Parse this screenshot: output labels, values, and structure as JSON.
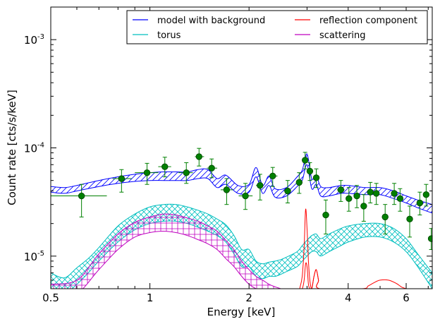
{
  "chart_data": {
    "type": "line",
    "xlabel": "Energy [keV]",
    "ylabel": "Count rate [cts/s/keV]",
    "xscale": "log",
    "yscale": "log",
    "xlim": [
      0.5,
      7.2
    ],
    "ylim": [
      5e-06,
      0.002
    ],
    "grid": false,
    "legend_placement": "top-right",
    "x_ticks": [
      {
        "value": 0.5,
        "label": "0.5"
      },
      {
        "value": 1,
        "label": "1"
      },
      {
        "value": 2,
        "label": "2"
      },
      {
        "value": 4,
        "label": "4"
      },
      {
        "value": 6,
        "label": "6"
      }
    ],
    "y_ticks": [
      {
        "value": 1e-05,
        "base": "10",
        "exp": "-5"
      },
      {
        "value": 0.0001,
        "base": "10",
        "exp": "-4"
      },
      {
        "value": 0.001,
        "base": "10",
        "exp": "-3"
      }
    ],
    "series": [
      {
        "name": "model with background",
        "color": "#0000ff",
        "hatch": "diagonal",
        "x": [
          0.5,
          0.55,
          0.6,
          0.7,
          0.8,
          0.9,
          1.0,
          1.1,
          1.2,
          1.3,
          1.4,
          1.5,
          1.6,
          1.7,
          1.85,
          2.0,
          2.1,
          2.2,
          2.3,
          2.4,
          2.6,
          2.8,
          2.9,
          3.0,
          3.1,
          3.2,
          3.3,
          3.5,
          3.8,
          4.0,
          4.5,
          5.0,
          5.5,
          6.0,
          6.5,
          7.2
        ],
        "low": [
          3.9e-05,
          3.8e-05,
          4e-05,
          4.4e-05,
          4.7e-05,
          4.9e-05,
          5e-05,
          5e-05,
          5e-05,
          5e-05,
          5.2e-05,
          5.2e-05,
          4.3e-05,
          4.6e-05,
          3.8e-05,
          3.9e-05,
          5.4e-05,
          3.8e-05,
          4.5e-05,
          3.5e-05,
          3.6e-05,
          4.4e-05,
          5e-05,
          7e-05,
          4.2e-05,
          4.6e-05,
          3.6e-05,
          3.6e-05,
          3.8e-05,
          3.8e-05,
          3.7e-05,
          3.7e-05,
          3.4e-05,
          3.1e-05,
          2.8e-05,
          2.5e-05
        ],
        "high": [
          4.4e-05,
          4.3e-05,
          4.5e-05,
          5e-05,
          5.4e-05,
          5.7e-05,
          5.9e-05,
          6e-05,
          6e-05,
          6e-05,
          6.3e-05,
          6.3e-05,
          5.2e-05,
          5.6e-05,
          4.5e-05,
          4.6e-05,
          6.6e-05,
          4.5e-05,
          5.5e-05,
          4.2e-05,
          4.3e-05,
          5.4e-05,
          6.2e-05,
          8.8e-05,
          5.2e-05,
          5.6e-05,
          4.4e-05,
          4.3e-05,
          4.5e-05,
          4.5e-05,
          4.3e-05,
          4.3e-05,
          4e-05,
          3.6e-05,
          3.3e-05,
          3e-05
        ]
      },
      {
        "name": "torus",
        "color": "#00bfbf",
        "hatch": "crosshatch",
        "x": [
          0.5,
          0.55,
          0.6,
          0.65,
          0.7,
          0.8,
          0.9,
          1.0,
          1.1,
          1.2,
          1.3,
          1.4,
          1.5,
          1.6,
          1.7,
          1.8,
          1.9,
          2.0,
          2.1,
          2.2,
          2.3,
          2.4,
          2.5,
          2.6,
          2.8,
          2.9,
          3.0,
          3.1,
          3.2,
          3.3,
          3.5,
          3.8,
          4.0,
          4.5,
          5.0,
          5.5,
          6.0,
          6.5,
          7.2
        ],
        "low": [
          5e-06,
          4.5e-06,
          5.5e-06,
          7e-06,
          9e-06,
          1.35e-05,
          1.75e-05,
          2e-05,
          2.1e-05,
          2.1e-05,
          2e-05,
          1.85e-05,
          1.7e-05,
          1.55e-05,
          1.35e-05,
          1.05e-05,
          8e-06,
          8e-06,
          6.5e-06,
          6.2e-06,
          6.5e-06,
          6.5e-06,
          6.8e-06,
          7.2e-06,
          8e-06,
          9e-06,
          1e-05,
          1.1e-05,
          1.1e-05,
          1e-05,
          1.1e-05,
          1.25e-05,
          1.35e-05,
          1.5e-05,
          1.5e-05,
          1.35e-05,
          1.1e-05,
          8e-06,
          5e-06
        ],
        "high": [
          7e-06,
          6.3e-06,
          7.8e-06,
          9.5e-06,
          1.2e-05,
          1.9e-05,
          2.45e-05,
          2.85e-05,
          3e-05,
          3e-05,
          2.85e-05,
          2.65e-05,
          2.45e-05,
          2.2e-05,
          1.95e-05,
          1.55e-05,
          1.15e-05,
          1.15e-05,
          9e-06,
          8.5e-06,
          8.8e-06,
          9e-06,
          9.3e-06,
          9.8e-06,
          1.1e-05,
          1.25e-05,
          1.4e-05,
          1.55e-05,
          1.6e-05,
          1.45e-05,
          1.6e-05,
          1.8e-05,
          1.9e-05,
          2e-05,
          2e-05,
          1.8e-05,
          1.45e-05,
          1.05e-05,
          7e-06
        ]
      },
      {
        "name": "reflection component",
        "color": "#ff0000",
        "hatch": "none",
        "x": [
          2.85,
          2.9,
          2.94,
          2.97,
          3.0,
          3.03,
          3.06,
          3.1,
          3.15,
          3.2,
          3.25,
          3.28,
          4.4,
          4.6,
          4.8,
          5.0,
          5.3,
          5.6,
          5.8,
          6.0
        ],
        "low": [
          5e-06,
          5e-06,
          6e-06,
          8.5e-06,
          8e-06,
          5.5e-06,
          5e-06,
          5e-06,
          6.5e-06,
          7.5e-06,
          6e-06,
          5e-06,
          5e-06,
          5e-06,
          5e-06,
          5e-06,
          5e-06,
          5e-06,
          5e-06,
          5e-06
        ],
        "high": [
          5e-06,
          6.5e-06,
          1.2e-05,
          2.7e-05,
          1.8e-05,
          9e-06,
          6e-06,
          5e-06,
          6.5e-06,
          7.5e-06,
          6e-06,
          5e-06,
          5e-06,
          5.3e-06,
          5.7e-06,
          6e-06,
          6e-06,
          5.6e-06,
          5.2e-06,
          5e-06
        ]
      },
      {
        "name": "scattering",
        "color": "#bf00bf",
        "hatch": "grid",
        "x": [
          0.5,
          0.6,
          0.7,
          0.8,
          0.9,
          1.0,
          1.1,
          1.2,
          1.3,
          1.4,
          1.5,
          1.6,
          1.7,
          1.8,
          1.9,
          2.0,
          2.1,
          2.2,
          2.3,
          2.4,
          2.5
        ],
        "low": [
          4e-06,
          4.5e-06,
          7.5e-06,
          1.15e-05,
          1.5e-05,
          1.65e-05,
          1.7e-05,
          1.65e-05,
          1.55e-05,
          1.42e-05,
          1.3e-05,
          1.15e-05,
          9.5e-06,
          8e-06,
          6.5e-06,
          5.5e-06,
          5e-06,
          4.8e-06,
          4.8e-06,
          4.8e-06,
          4.8e-06
        ],
        "high": [
          5.5e-06,
          6e-06,
          1.05e-05,
          1.6e-05,
          2.05e-05,
          2.3e-05,
          2.45e-05,
          2.4e-05,
          2.25e-05,
          2.1e-05,
          1.9e-05,
          1.7e-05,
          1.4e-05,
          1.15e-05,
          9e-06,
          7.5e-06,
          6.5e-06,
          6e-06,
          5.5e-06,
          5.2e-06,
          5e-06
        ]
      }
    ],
    "data_points": {
      "color": "#008000",
      "edge_color": "#004d00",
      "points": [
        {
          "x": 0.62,
          "y": 3.6e-05,
          "xlo": 0.5,
          "xhi": 0.74,
          "ylo": 2.3e-05,
          "yhi": 4.6e-05
        },
        {
          "x": 0.82,
          "y": 5.2e-05,
          "xlo": 0.77,
          "xhi": 0.88,
          "ylo": 3.9e-05,
          "yhi": 6.3e-05
        },
        {
          "x": 0.98,
          "y": 5.9e-05,
          "xlo": 0.9,
          "xhi": 1.06,
          "ylo": 4.6e-05,
          "yhi": 7.2e-05
        },
        {
          "x": 1.11,
          "y": 6.7e-05,
          "xlo": 1.06,
          "xhi": 1.16,
          "ylo": 5.4e-05,
          "yhi": 8.2e-05
        },
        {
          "x": 1.29,
          "y": 5.9e-05,
          "xlo": 1.22,
          "xhi": 1.35,
          "ylo": 4.7e-05,
          "yhi": 7.3e-05
        },
        {
          "x": 1.41,
          "y": 8.3e-05,
          "xlo": 1.37,
          "xhi": 1.46,
          "ylo": 6.8e-05,
          "yhi": 9.9e-05
        },
        {
          "x": 1.54,
          "y": 6.5e-05,
          "xlo": 1.49,
          "xhi": 1.6,
          "ylo": 5.3e-05,
          "yhi": 7.9e-05
        },
        {
          "x": 1.71,
          "y": 4.1e-05,
          "xlo": 1.64,
          "xhi": 1.79,
          "ylo": 3e-05,
          "yhi": 5.2e-05
        },
        {
          "x": 1.95,
          "y": 3.6e-05,
          "xlo": 1.86,
          "xhi": 2.05,
          "ylo": 2.7e-05,
          "yhi": 4.7e-05
        },
        {
          "x": 2.16,
          "y": 4.5e-05,
          "xlo": 2.1,
          "xhi": 2.2,
          "ylo": 3.3e-05,
          "yhi": 5.7e-05
        },
        {
          "x": 2.36,
          "y": 5.5e-05,
          "xlo": 2.3,
          "xhi": 2.44,
          "ylo": 4.4e-05,
          "yhi": 6.6e-05
        },
        {
          "x": 2.62,
          "y": 4e-05,
          "xlo": 2.55,
          "xhi": 2.68,
          "ylo": 3.1e-05,
          "yhi": 5e-05
        },
        {
          "x": 2.84,
          "y": 4.8e-05,
          "xlo": 2.78,
          "xhi": 2.88,
          "ylo": 3.8e-05,
          "yhi": 5.9e-05
        },
        {
          "x": 2.96,
          "y": 7.7e-05,
          "xlo": 2.92,
          "xhi": 3.0,
          "ylo": 6.4e-05,
          "yhi": 9.1e-05
        },
        {
          "x": 3.06,
          "y": 6.1e-05,
          "xlo": 3.02,
          "xhi": 3.1,
          "ylo": 5e-05,
          "yhi": 7.3e-05
        },
        {
          "x": 3.2,
          "y": 5.3e-05,
          "xlo": 3.14,
          "xhi": 3.26,
          "ylo": 4.3e-05,
          "yhi": 6.4e-05
        },
        {
          "x": 3.42,
          "y": 2.4e-05,
          "xlo": 3.35,
          "xhi": 3.5,
          "ylo": 1.6e-05,
          "yhi": 3.3e-05
        },
        {
          "x": 3.8,
          "y": 4.1e-05,
          "xlo": 3.7,
          "xhi": 3.9,
          "ylo": 3.2e-05,
          "yhi": 5e-05
        },
        {
          "x": 4.02,
          "y": 3.4e-05,
          "xlo": 3.94,
          "xhi": 4.1,
          "ylo": 2.6e-05,
          "yhi": 4.3e-05
        },
        {
          "x": 4.25,
          "y": 3.6e-05,
          "xlo": 4.17,
          "xhi": 4.33,
          "ylo": 2.8e-05,
          "yhi": 4.5e-05
        },
        {
          "x": 4.46,
          "y": 2.9e-05,
          "xlo": 4.38,
          "xhi": 4.53,
          "ylo": 2.1e-05,
          "yhi": 3.7e-05
        },
        {
          "x": 4.67,
          "y": 3.9e-05,
          "xlo": 4.6,
          "xhi": 4.74,
          "ylo": 3.1e-05,
          "yhi": 4.8e-05
        },
        {
          "x": 4.87,
          "y": 3.8e-05,
          "xlo": 4.79,
          "xhi": 4.95,
          "ylo": 3e-05,
          "yhi": 4.7e-05
        },
        {
          "x": 5.18,
          "y": 2.3e-05,
          "xlo": 5.06,
          "xhi": 5.3,
          "ylo": 1.6e-05,
          "yhi": 3e-05
        },
        {
          "x": 5.52,
          "y": 3.8e-05,
          "xlo": 5.42,
          "xhi": 5.62,
          "ylo": 3e-05,
          "yhi": 4.7e-05
        },
        {
          "x": 5.75,
          "y": 3.4e-05,
          "xlo": 5.66,
          "xhi": 5.84,
          "ylo": 2.6e-05,
          "yhi": 4.2e-05
        },
        {
          "x": 6.15,
          "y": 2.2e-05,
          "xlo": 6.02,
          "xhi": 6.28,
          "ylo": 1.5e-05,
          "yhi": 2.9e-05
        },
        {
          "x": 6.6,
          "y": 3.1e-05,
          "xlo": 6.5,
          "xhi": 6.7,
          "ylo": 2.4e-05,
          "yhi": 3.9e-05
        },
        {
          "x": 6.9,
          "y": 3.7e-05,
          "xlo": 6.8,
          "xhi": 7.0,
          "ylo": 2.9e-05,
          "yhi": 4.6e-05
        },
        {
          "x": 7.15,
          "y": 1.45e-05,
          "xlo": 7.1,
          "xhi": 7.2,
          "ylo": 1.15e-05,
          "yhi": 1.8e-05
        }
      ]
    }
  }
}
